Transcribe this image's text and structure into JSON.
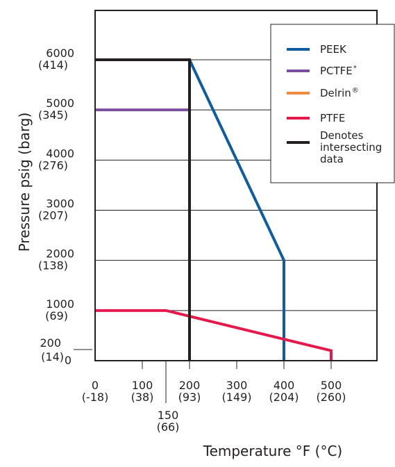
{
  "chart_data": {
    "type": "line",
    "title": "",
    "xlabel": "Temperature °F (°C)",
    "ylabel": "Pressure psig (barg)",
    "xlim": [
      0,
      590
    ],
    "ylim": [
      0,
      7000
    ],
    "grid": "horizontal",
    "legend_position": "top-right",
    "x_ticks": [
      {
        "value": 0,
        "line1": "0",
        "line2": "(-18)"
      },
      {
        "value": 100,
        "line1": "100",
        "line2": "(38)"
      },
      {
        "value": 150,
        "line1": "150",
        "line2": "(66)"
      },
      {
        "value": 200,
        "line1": "200",
        "line2": "(93)"
      },
      {
        "value": 300,
        "line1": "300",
        "line2": "(149)"
      },
      {
        "value": 400,
        "line1": "400",
        "line2": "(204)"
      },
      {
        "value": 500,
        "line1": "500",
        "line2": "(260)"
      }
    ],
    "y_ticks": [
      {
        "value": 0,
        "line1": "0",
        "line2": ""
      },
      {
        "value": 200,
        "line1": "200",
        "line2": "(14)"
      },
      {
        "value": 1000,
        "line1": "1000",
        "line2": "(69)"
      },
      {
        "value": 2000,
        "line1": "2000",
        "line2": "(138)"
      },
      {
        "value": 3000,
        "line1": "3000",
        "line2": "(207)"
      },
      {
        "value": 4000,
        "line1": "4000",
        "line2": "(276)"
      },
      {
        "value": 5000,
        "line1": "5000",
        "line2": "(345)"
      },
      {
        "value": 6000,
        "line1": "6000",
        "line2": "(414)"
      }
    ],
    "series": [
      {
        "name": "PEEK",
        "label": "PEEK",
        "sup": "",
        "color": "#0f5da0",
        "x": [
          200,
          400,
          400
        ],
        "y": [
          6000,
          2000,
          0
        ]
      },
      {
        "name": "PCTFE",
        "label": "PCTFE",
        "sup": "*",
        "color": "#7b4fa0",
        "x": [
          0,
          200
        ],
        "y": [
          5000,
          5000
        ]
      },
      {
        "name": "Delrin",
        "label": "Delrin",
        "sup": "®",
        "color": "#f08a40",
        "x": [
          200,
          200
        ],
        "y": [
          5000,
          6000
        ]
      },
      {
        "name": "PTFE",
        "label": "PTFE",
        "sup": "",
        "color": "#e5194b",
        "x": [
          0,
          150,
          500,
          500
        ],
        "y": [
          1000,
          1000,
          200,
          0
        ]
      },
      {
        "name": "Denotes intersecting data",
        "label": "Denotes intersecting data",
        "sup": "",
        "color": "#231f20",
        "x": [
          0,
          200,
          200
        ],
        "y": [
          6000,
          6000,
          0
        ]
      }
    ]
  }
}
